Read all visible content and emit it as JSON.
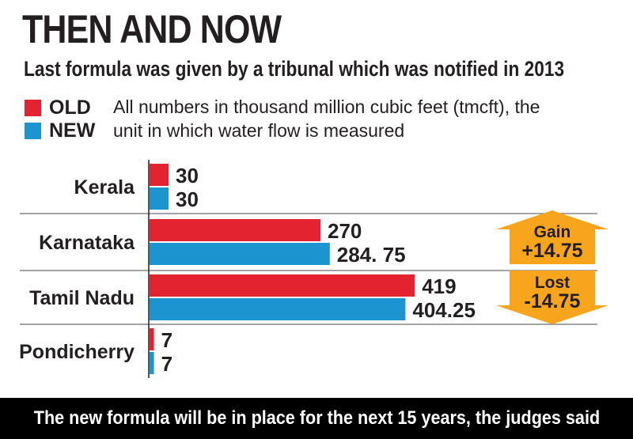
{
  "title": "THEN AND NOW",
  "subtitle": "Last formula was given by a tribunal which was notified in 2013",
  "legend": {
    "old_label": "OLD",
    "new_label": "NEW",
    "note": "All numbers in thousand million cubic feet (tmcft), the unit in which water flow is measured"
  },
  "colors": {
    "old": "#e3232f",
    "new": "#1c94cf",
    "callout": "#f7a51c",
    "divider": "#6d6e71",
    "footer_bg": "#000000"
  },
  "chart_data": {
    "type": "bar",
    "orientation": "horizontal",
    "categories": [
      "Kerala",
      "Karnataka",
      "Tamil Nadu",
      "Pondicherry"
    ],
    "series": [
      {
        "name": "OLD",
        "values": [
          30,
          270,
          419,
          7
        ],
        "labels": [
          "30",
          "270",
          "419",
          "7"
        ]
      },
      {
        "name": "NEW",
        "values": [
          30,
          284.75,
          404.25,
          7
        ],
        "labels": [
          "30",
          "284. 75",
          "404.25",
          "7"
        ]
      }
    ],
    "callouts": [
      {
        "category": "Karnataka",
        "direction": "up",
        "label": "Gain",
        "value": "+14.75"
      },
      {
        "category": "Tamil Nadu",
        "direction": "down",
        "label": "Lost",
        "value": "-14.75"
      }
    ]
  },
  "footer": "The new formula will be in place for the next 15 years, the judges said"
}
